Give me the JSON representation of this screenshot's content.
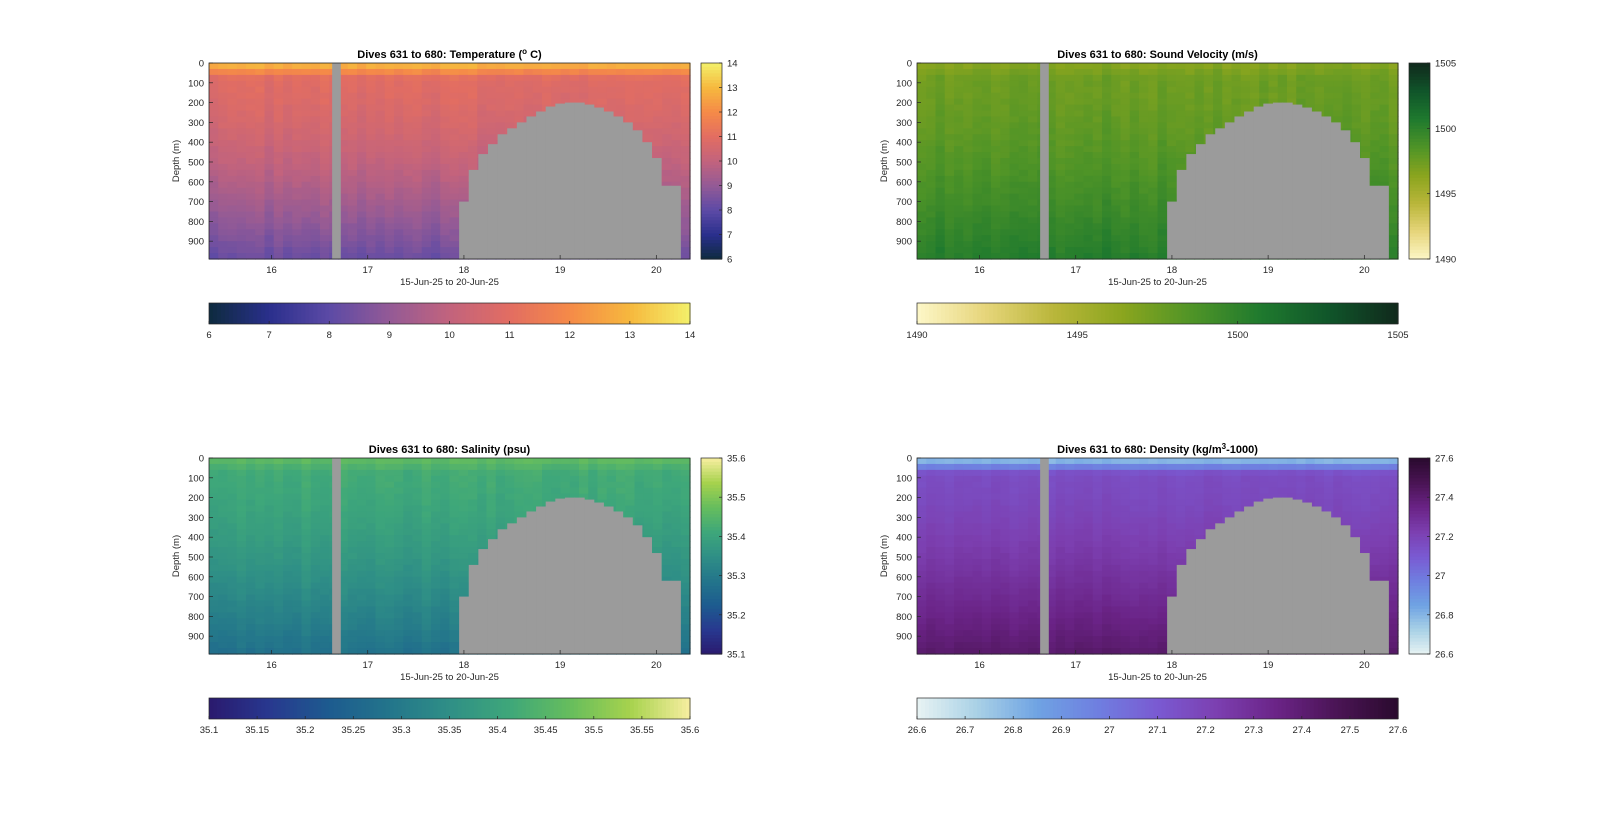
{
  "figure": {
    "background": "#ffffff",
    "mask_color": "#9b9b9b"
  },
  "chart_data": [
    {
      "type": "heatmap",
      "title_main": "Dives 631 to 680: Temperature (",
      "title_sup": "o",
      "title_tail": " C)",
      "xlabel": "15-Jun-25 to 20-Jun-25",
      "ylabel": "Depth (m)",
      "x_ticks": [
        "16",
        "17",
        "18",
        "19",
        "20"
      ],
      "x_tick_values": [
        16,
        17,
        18,
        19,
        20
      ],
      "xlim": [
        15.35,
        20.35
      ],
      "y_ticks": [
        "0",
        "100",
        "200",
        "300",
        "400",
        "500",
        "600",
        "700",
        "800",
        "900"
      ],
      "y_tick_values": [
        0,
        100,
        200,
        300,
        400,
        500,
        600,
        700,
        800,
        900
      ],
      "ylim": [
        0,
        990
      ],
      "y_reversed": true,
      "colorbar_ticks": [
        "6",
        "7",
        "8",
        "9",
        "10",
        "11",
        "12",
        "13",
        "14"
      ],
      "colorbar_range": [
        6,
        14
      ],
      "horizontal_colorbar_ticks": [
        "6",
        "7",
        "8",
        "9",
        "10",
        "11",
        "12",
        "13",
        "14"
      ],
      "colormap": [
        "#0d2b3e",
        "#2a2f8c",
        "#5c4aa6",
        "#935a96",
        "#c2637d",
        "#e26d62",
        "#f58a48",
        "#f6b83e",
        "#f3f06a"
      ],
      "profile": {
        "surface": 13.2,
        "mid": 10.9,
        "deep": 8.2
      },
      "noise": 0.35,
      "gap_start": 16.63,
      "gap_end": 16.72,
      "seafloor": [
        {
          "x": 17.95,
          "depth": 700
        },
        {
          "x": 18.05,
          "depth": 540
        },
        {
          "x": 18.15,
          "depth": 460
        },
        {
          "x": 18.25,
          "depth": 410
        },
        {
          "x": 18.35,
          "depth": 360
        },
        {
          "x": 18.45,
          "depth": 330
        },
        {
          "x": 18.55,
          "depth": 300
        },
        {
          "x": 18.65,
          "depth": 270
        },
        {
          "x": 18.75,
          "depth": 245
        },
        {
          "x": 18.85,
          "depth": 220
        },
        {
          "x": 18.95,
          "depth": 205
        },
        {
          "x": 19.05,
          "depth": 200
        },
        {
          "x": 19.15,
          "depth": 200
        },
        {
          "x": 19.25,
          "depth": 210
        },
        {
          "x": 19.35,
          "depth": 225
        },
        {
          "x": 19.45,
          "depth": 245
        },
        {
          "x": 19.55,
          "depth": 270
        },
        {
          "x": 19.65,
          "depth": 300
        },
        {
          "x": 19.75,
          "depth": 340
        },
        {
          "x": 19.85,
          "depth": 400
        },
        {
          "x": 19.95,
          "depth": 480
        },
        {
          "x": 20.05,
          "depth": 620
        },
        {
          "x": 20.15,
          "depth": 620
        }
      ],
      "seafloor_end": 20.25
    },
    {
      "type": "heatmap",
      "title_main": "Dives 631 to 680: Sound Velocity (m/s)",
      "title_sup": "",
      "title_tail": "",
      "xlabel": "15-Jun-25 to 20-Jun-25",
      "ylabel": "Depth (m)",
      "x_ticks": [
        "16",
        "17",
        "18",
        "19",
        "20"
      ],
      "x_tick_values": [
        16,
        17,
        18,
        19,
        20
      ],
      "xlim": [
        15.35,
        20.35
      ],
      "y_ticks": [
        "0",
        "100",
        "200",
        "300",
        "400",
        "500",
        "600",
        "700",
        "800",
        "900"
      ],
      "y_tick_values": [
        0,
        100,
        200,
        300,
        400,
        500,
        600,
        700,
        800,
        900
      ],
      "ylim": [
        0,
        990
      ],
      "y_reversed": true,
      "colorbar_ticks": [
        "1490",
        "1495",
        "1500",
        "1505"
      ],
      "colorbar_range": [
        1490,
        1505
      ],
      "horizontal_colorbar_ticks": [
        "1490",
        "1495",
        "1500",
        "1505"
      ],
      "colormap": [
        "#fdf7c8",
        "#e6d57a",
        "#b9b63a",
        "#8aa51e",
        "#4f9427",
        "#1f7a2e",
        "#10552a",
        "#10291c"
      ],
      "profile": {
        "surface": 1496.5,
        "mid": 1497.5,
        "deep": 1500.5
      },
      "noise": 0.7,
      "gap_start": 16.63,
      "gap_end": 16.72,
      "seafloor": [
        {
          "x": 17.95,
          "depth": 700
        },
        {
          "x": 18.05,
          "depth": 540
        },
        {
          "x": 18.15,
          "depth": 460
        },
        {
          "x": 18.25,
          "depth": 410
        },
        {
          "x": 18.35,
          "depth": 360
        },
        {
          "x": 18.45,
          "depth": 330
        },
        {
          "x": 18.55,
          "depth": 300
        },
        {
          "x": 18.65,
          "depth": 270
        },
        {
          "x": 18.75,
          "depth": 245
        },
        {
          "x": 18.85,
          "depth": 220
        },
        {
          "x": 18.95,
          "depth": 205
        },
        {
          "x": 19.05,
          "depth": 200
        },
        {
          "x": 19.15,
          "depth": 200
        },
        {
          "x": 19.25,
          "depth": 210
        },
        {
          "x": 19.35,
          "depth": 225
        },
        {
          "x": 19.45,
          "depth": 245
        },
        {
          "x": 19.55,
          "depth": 270
        },
        {
          "x": 19.65,
          "depth": 300
        },
        {
          "x": 19.75,
          "depth": 340
        },
        {
          "x": 19.85,
          "depth": 400
        },
        {
          "x": 19.95,
          "depth": 480
        },
        {
          "x": 20.05,
          "depth": 620
        },
        {
          "x": 20.15,
          "depth": 620
        }
      ],
      "seafloor_end": 20.25
    },
    {
      "type": "heatmap",
      "title_main": "Dives 631 to 680: Salinity (psu)",
      "title_sup": "",
      "title_tail": "",
      "xlabel": "15-Jun-25 to 20-Jun-25",
      "ylabel": "Depth (m)",
      "x_ticks": [
        "16",
        "17",
        "18",
        "19",
        "20"
      ],
      "x_tick_values": [
        16,
        17,
        18,
        19,
        20
      ],
      "xlim": [
        15.35,
        20.35
      ],
      "y_ticks": [
        "0",
        "100",
        "200",
        "300",
        "400",
        "500",
        "600",
        "700",
        "800",
        "900"
      ],
      "y_tick_values": [
        0,
        100,
        200,
        300,
        400,
        500,
        600,
        700,
        800,
        900
      ],
      "ylim": [
        0,
        990
      ],
      "y_reversed": true,
      "colorbar_ticks": [
        "35.1",
        "35.2",
        "35.3",
        "35.4",
        "35.5",
        "35.6"
      ],
      "colorbar_range": [
        35.1,
        35.6
      ],
      "horizontal_colorbar_ticks": [
        "35.1",
        "35.15",
        "35.2",
        "35.25",
        "35.3",
        "35.35",
        "35.4",
        "35.45",
        "35.5",
        "35.55",
        "35.6"
      ],
      "colormap": [
        "#2a1a6e",
        "#28388f",
        "#1d5b8f",
        "#23758b",
        "#2f8f86",
        "#3ea77a",
        "#66bd5d",
        "#a6d24d",
        "#f7eea0"
      ],
      "profile": {
        "surface": 35.47,
        "mid": 35.42,
        "deep": 35.28
      },
      "noise": 0.02,
      "gap_start": 16.63,
      "gap_end": 16.72,
      "seafloor": [
        {
          "x": 17.95,
          "depth": 700
        },
        {
          "x": 18.05,
          "depth": 540
        },
        {
          "x": 18.15,
          "depth": 460
        },
        {
          "x": 18.25,
          "depth": 410
        },
        {
          "x": 18.35,
          "depth": 360
        },
        {
          "x": 18.45,
          "depth": 330
        },
        {
          "x": 18.55,
          "depth": 300
        },
        {
          "x": 18.65,
          "depth": 270
        },
        {
          "x": 18.75,
          "depth": 245
        },
        {
          "x": 18.85,
          "depth": 220
        },
        {
          "x": 18.95,
          "depth": 205
        },
        {
          "x": 19.05,
          "depth": 200
        },
        {
          "x": 19.15,
          "depth": 200
        },
        {
          "x": 19.25,
          "depth": 210
        },
        {
          "x": 19.35,
          "depth": 225
        },
        {
          "x": 19.45,
          "depth": 245
        },
        {
          "x": 19.55,
          "depth": 270
        },
        {
          "x": 19.65,
          "depth": 300
        },
        {
          "x": 19.75,
          "depth": 340
        },
        {
          "x": 19.85,
          "depth": 400
        },
        {
          "x": 19.95,
          "depth": 480
        },
        {
          "x": 20.05,
          "depth": 620
        },
        {
          "x": 20.15,
          "depth": 620
        }
      ],
      "seafloor_end": 20.25
    },
    {
      "type": "heatmap",
      "title_main": "Dives 631 to 680: Density (kg/m",
      "title_sup": "3",
      "title_tail": "-1000)",
      "xlabel": "15-Jun-25 to 20-Jun-25",
      "ylabel": "Depth (m)",
      "x_ticks": [
        "16",
        "17",
        "18",
        "19",
        "20"
      ],
      "x_tick_values": [
        16,
        17,
        18,
        19,
        20
      ],
      "xlim": [
        15.35,
        20.35
      ],
      "y_ticks": [
        "0",
        "100",
        "200",
        "300",
        "400",
        "500",
        "600",
        "700",
        "800",
        "900"
      ],
      "y_tick_values": [
        0,
        100,
        200,
        300,
        400,
        500,
        600,
        700,
        800,
        900
      ],
      "ylim": [
        0,
        990
      ],
      "y_reversed": true,
      "colorbar_ticks": [
        "26.6",
        "26.8",
        "27",
        "27.2",
        "27.4",
        "27.6"
      ],
      "colorbar_range": [
        26.6,
        27.6
      ],
      "horizontal_colorbar_ticks": [
        "26.6",
        "26.7",
        "26.8",
        "26.9",
        "27",
        "27.1",
        "27.2",
        "27.3",
        "27.4",
        "27.5",
        "27.6"
      ],
      "colormap": [
        "#e8f3f3",
        "#a9d1e6",
        "#6fa3e3",
        "#6f7fe0",
        "#7a5ad2",
        "#7c3fb0",
        "#6a2386",
        "#4a1454",
        "#2a0a2e"
      ],
      "profile": {
        "surface": 26.72,
        "mid": 27.16,
        "deep": 27.42
      },
      "noise": 0.025,
      "gap_start": 16.63,
      "gap_end": 16.72,
      "seafloor": [
        {
          "x": 17.95,
          "depth": 700
        },
        {
          "x": 18.05,
          "depth": 540
        },
        {
          "x": 18.15,
          "depth": 460
        },
        {
          "x": 18.25,
          "depth": 410
        },
        {
          "x": 18.35,
          "depth": 360
        },
        {
          "x": 18.45,
          "depth": 330
        },
        {
          "x": 18.55,
          "depth": 300
        },
        {
          "x": 18.65,
          "depth": 270
        },
        {
          "x": 18.75,
          "depth": 245
        },
        {
          "x": 18.85,
          "depth": 220
        },
        {
          "x": 18.95,
          "depth": 205
        },
        {
          "x": 19.05,
          "depth": 200
        },
        {
          "x": 19.15,
          "depth": 200
        },
        {
          "x": 19.25,
          "depth": 210
        },
        {
          "x": 19.35,
          "depth": 225
        },
        {
          "x": 19.45,
          "depth": 245
        },
        {
          "x": 19.55,
          "depth": 270
        },
        {
          "x": 19.65,
          "depth": 300
        },
        {
          "x": 19.75,
          "depth": 340
        },
        {
          "x": 19.85,
          "depth": 400
        },
        {
          "x": 19.95,
          "depth": 480
        },
        {
          "x": 20.05,
          "depth": 620
        },
        {
          "x": 20.15,
          "depth": 620
        }
      ],
      "seafloor_end": 20.25
    }
  ]
}
